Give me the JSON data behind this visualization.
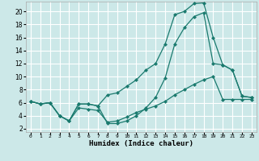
{
  "bg_color": "#cce8e8",
  "grid_color": "#ffffff",
  "line_color": "#1a7a6e",
  "xlabel": "Humidex (Indice chaleur)",
  "xlim": [
    -0.5,
    23.5
  ],
  "ylim": [
    1.5,
    21.5
  ],
  "xticks": [
    0,
    1,
    2,
    3,
    4,
    5,
    6,
    7,
    8,
    9,
    10,
    11,
    12,
    13,
    14,
    15,
    16,
    17,
    18,
    19,
    20,
    21,
    22,
    23
  ],
  "yticks": [
    2,
    4,
    6,
    8,
    10,
    12,
    14,
    16,
    18,
    20
  ],
  "line1_x": [
    0,
    1,
    2,
    3,
    4,
    5,
    6,
    7,
    8,
    9,
    10,
    11,
    12,
    13,
    14,
    15,
    16,
    17,
    18,
    19,
    20,
    21,
    22,
    23
  ],
  "line1_y": [
    6.2,
    5.8,
    6.0,
    4.0,
    3.2,
    5.8,
    5.8,
    5.5,
    7.2,
    7.5,
    8.5,
    9.5,
    11.0,
    12.0,
    15.0,
    19.5,
    20.0,
    21.2,
    21.3,
    16.0,
    11.8,
    11.0,
    7.0,
    6.8
  ],
  "line2_x": [
    0,
    1,
    2,
    3,
    4,
    5,
    6,
    7,
    8,
    9,
    10,
    11,
    12,
    13,
    14,
    15,
    16,
    17,
    18,
    19,
    20,
    21,
    22,
    23
  ],
  "line2_y": [
    6.2,
    5.8,
    6.0,
    4.0,
    3.2,
    5.8,
    5.8,
    5.5,
    2.8,
    2.8,
    3.2,
    4.0,
    5.2,
    6.8,
    9.8,
    15.0,
    17.5,
    19.2,
    19.8,
    12.0,
    11.8,
    11.0,
    7.0,
    6.8
  ],
  "line3_x": [
    0,
    1,
    2,
    3,
    4,
    5,
    6,
    7,
    8,
    9,
    10,
    11,
    12,
    13,
    14,
    15,
    16,
    17,
    18,
    19,
    20,
    21,
    22,
    23
  ],
  "line3_y": [
    6.2,
    5.8,
    6.0,
    4.0,
    3.2,
    5.2,
    5.0,
    4.8,
    3.0,
    3.2,
    3.8,
    4.5,
    5.0,
    5.5,
    6.2,
    7.2,
    8.0,
    8.8,
    9.5,
    10.0,
    6.5,
    6.5,
    6.5,
    6.5
  ]
}
